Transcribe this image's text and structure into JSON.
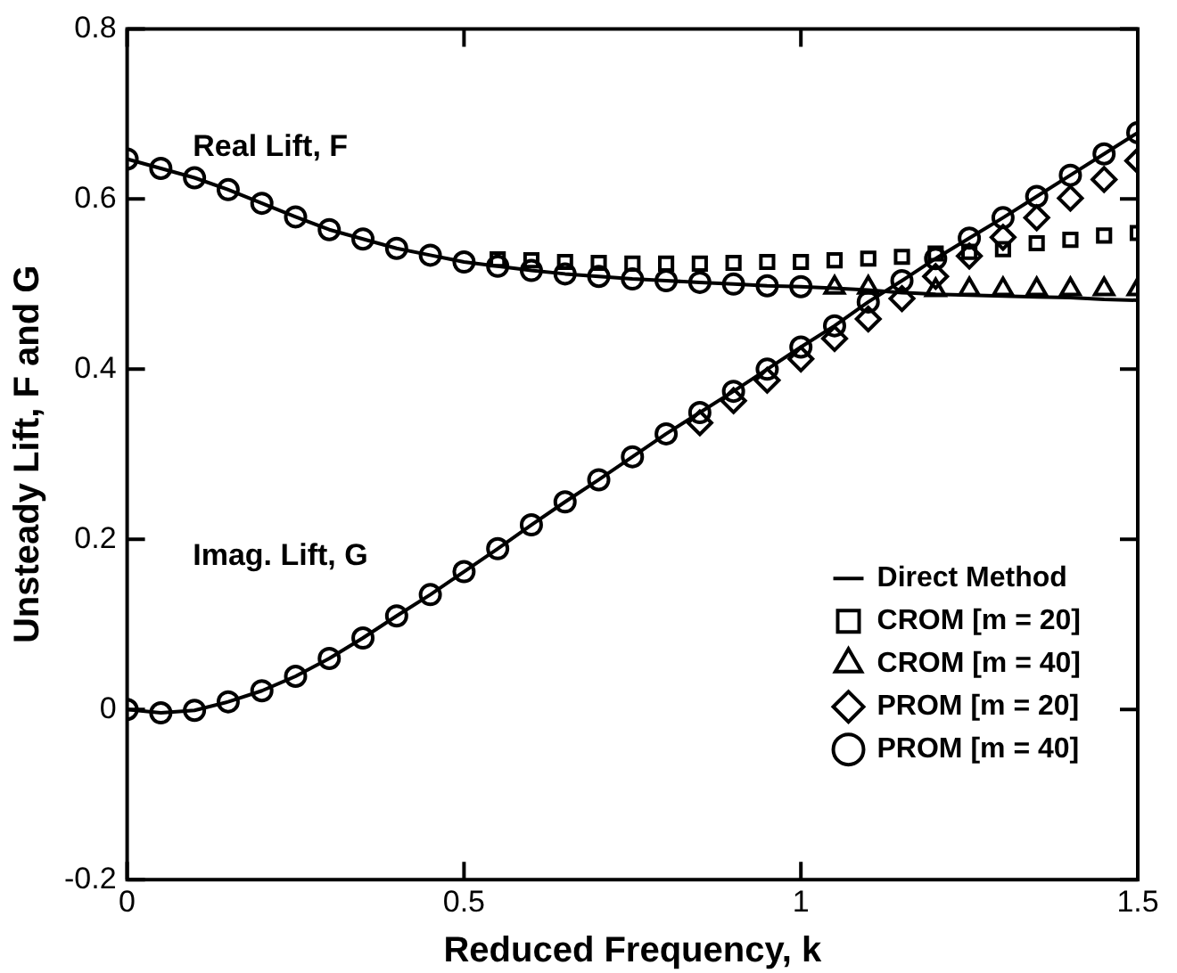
{
  "chart_data": {
    "type": "line",
    "xlabel": "Reduced Frequency, k",
    "ylabel": "Unsteady Lift, F and G",
    "x": [
      0,
      0.05,
      0.1,
      0.15,
      0.2,
      0.25,
      0.3,
      0.35,
      0.4,
      0.45,
      0.5,
      0.55,
      0.6,
      0.65,
      0.7,
      0.75,
      0.8,
      0.85,
      0.9,
      0.95,
      1,
      1.05,
      1.1,
      1.15,
      1.2,
      1.25,
      1.3,
      1.35,
      1.4,
      1.45,
      1.5
    ],
    "series": [
      {
        "name": "Direct Method",
        "marker": "none",
        "line_style": "solid",
        "color": "#000000",
        "values": [
          0.647,
          0.636,
          0.625,
          0.611,
          0.595,
          0.579,
          0.564,
          0.553,
          0.542,
          0.534,
          0.526,
          0.521,
          0.516,
          0.512,
          0.509,
          0.506,
          0.504,
          0.502,
          0.5,
          0.498,
          0.497,
          0.495,
          0.493,
          0.49,
          0.488,
          0.487,
          0.486,
          0.485,
          0.484,
          0.482,
          0.481
        ]
      },
      {
        "marker": "none",
        "line_style": "solid",
        "color": "#000000",
        "values": [
          0,
          -0.004,
          -0.001,
          0.009,
          0.022,
          0.039,
          0.06,
          0.084,
          0.11,
          0.135,
          0.162,
          0.189,
          0.217,
          0.244,
          0.27,
          0.297,
          0.324,
          0.349,
          0.374,
          0.4,
          0.426,
          0.451,
          0.479,
          0.504,
          0.53,
          0.554,
          0.578,
          0.603,
          0.628,
          0.653,
          0.678
        ]
      },
      {
        "name": "CROM [m = 20]",
        "type": "scatter",
        "marker": "square",
        "color": "#000000",
        "values": [
          null,
          null,
          null,
          null,
          null,
          null,
          null,
          null,
          null,
          null,
          null,
          0.529,
          0.528,
          0.526,
          0.525,
          0.524,
          0.524,
          0.524,
          0.525,
          0.526,
          0.526,
          0.528,
          0.53,
          0.532,
          0.536,
          0.538,
          0.541,
          0.548,
          0.552,
          0.557,
          0.56
        ]
      },
      {
        "name": "CROM [m = 40]",
        "type": "scatter",
        "marker": "triangle",
        "color": "#000000",
        "values": [
          null,
          null,
          null,
          null,
          null,
          null,
          null,
          null,
          null,
          null,
          null,
          null,
          null,
          null,
          null,
          null,
          null,
          null,
          null,
          null,
          null,
          0.496,
          0.496,
          null,
          0.493,
          0.494,
          0.494,
          0.494,
          0.494,
          0.494,
          0.494
        ]
      },
      {
        "name": "PROM [m = 20]",
        "type": "scatter",
        "marker": "diamond",
        "color": "#000000",
        "values": [
          null,
          null,
          null,
          null,
          null,
          null,
          null,
          null,
          null,
          null,
          null,
          null,
          null,
          null,
          null,
          null,
          null,
          0.337,
          0.363,
          0.387,
          0.412,
          0.436,
          0.459,
          0.483,
          0.509,
          0.533,
          0.555,
          0.578,
          0.601,
          0.623,
          0.645
        ]
      },
      {
        "name": "PROM [m = 40]",
        "type": "scatter",
        "marker": "circle",
        "color": "#000000",
        "values": [
          0.647,
          0.636,
          0.625,
          0.611,
          0.595,
          0.579,
          0.564,
          0.553,
          0.542,
          0.534,
          0.526,
          0.521,
          0.516,
          0.512,
          0.509,
          0.506,
          0.504,
          0.502,
          0.5,
          0.498,
          0.497,
          null,
          null,
          null,
          null,
          null,
          null,
          null,
          null,
          null,
          null
        ]
      },
      {
        "type": "scatter",
        "marker": "circle",
        "color": "#000000",
        "values": [
          0,
          -0.004,
          -0.001,
          0.009,
          0.022,
          0.039,
          0.06,
          0.084,
          0.11,
          0.135,
          0.162,
          0.189,
          0.217,
          0.244,
          0.27,
          0.297,
          0.324,
          0.349,
          0.374,
          0.4,
          0.426,
          0.451,
          0.479,
          0.504,
          0.53,
          0.554,
          0.578,
          0.603,
          0.628,
          0.653,
          0.678
        ]
      }
    ],
    "xlim": [
      0,
      1.5
    ],
    "xticks": [
      0,
      0.5,
      1,
      1.5
    ],
    "ylim": [
      -0.2,
      0.8
    ],
    "yticks": [
      -0.2,
      0,
      0.2,
      0.4,
      0.6,
      0.8
    ],
    "grid": false,
    "legend": "bottom right",
    "annotations": [
      "Real Lift, F",
      "Imag. Lift, G"
    ]
  }
}
